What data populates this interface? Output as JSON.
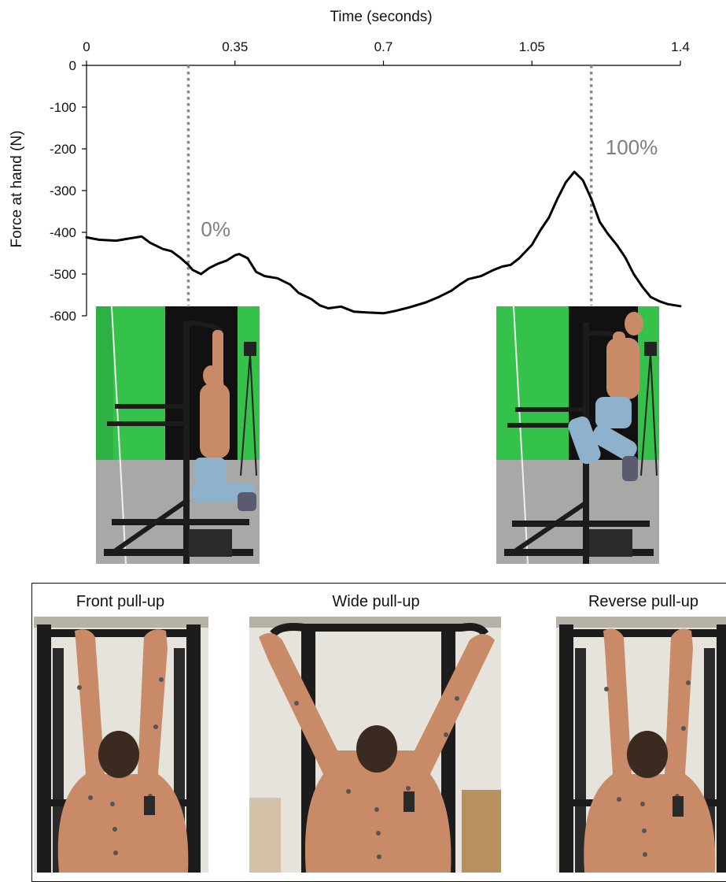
{
  "chart_data": {
    "type": "line",
    "xlabel": "Time (seconds)",
    "ylabel": "Force at hand (N)",
    "xlim": [
      0,
      1.4
    ],
    "ylim": [
      -600,
      0
    ],
    "x_ticks": [
      0,
      0.35,
      0.7,
      1.05,
      1.4
    ],
    "x_tick_labels": [
      "0",
      "0.35",
      "0.7",
      "1.05",
      "1.4"
    ],
    "y_ticks": [
      0,
      -100,
      -200,
      -300,
      -400,
      -500,
      -600
    ],
    "y_tick_labels": [
      "0",
      "-100",
      "-200",
      "-300",
      "-400",
      "-500",
      "-600"
    ],
    "x_axis_position": "top",
    "grid": false,
    "series": [
      {
        "x": [
          0,
          0.03,
          0.07,
          0.1,
          0.13,
          0.15,
          0.18,
          0.2,
          0.22,
          0.24,
          0.25,
          0.27,
          0.29,
          0.31,
          0.33,
          0.35,
          0.36,
          0.38,
          0.4,
          0.42,
          0.45,
          0.48,
          0.5,
          0.53,
          0.55,
          0.57,
          0.6,
          0.63,
          0.66,
          0.7,
          0.73,
          0.76,
          0.8,
          0.83,
          0.86,
          0.88,
          0.9,
          0.93,
          0.96,
          0.98,
          1.0,
          1.02,
          1.05,
          1.07,
          1.09,
          1.11,
          1.13,
          1.15,
          1.17,
          1.19,
          1.21,
          1.23,
          1.25,
          1.27,
          1.29,
          1.31,
          1.33,
          1.35,
          1.37,
          1.4
        ],
        "y": [
          -412,
          -418,
          -420,
          -415,
          -410,
          -425,
          -440,
          -445,
          -460,
          -478,
          -490,
          -500,
          -485,
          -475,
          -468,
          -455,
          -452,
          -462,
          -495,
          -505,
          -510,
          -525,
          -545,
          -560,
          -575,
          -582,
          -578,
          -590,
          -592,
          -594,
          -588,
          -580,
          -568,
          -555,
          -540,
          -525,
          -512,
          -505,
          -490,
          -482,
          -478,
          -462,
          -430,
          -395,
          -365,
          -320,
          -280,
          -255,
          -275,
          -320,
          -375,
          -405,
          -430,
          -460,
          -500,
          -530,
          -555,
          -565,
          -572,
          -577
        ]
      }
    ],
    "annotations": [
      {
        "x": 0.24,
        "label": "0%",
        "style": "dotted-vertical"
      },
      {
        "x": 1.19,
        "label": "100%",
        "style": "dotted-vertical"
      }
    ]
  },
  "panel": {
    "labels": [
      "Front pull-up",
      "Wide pull-up",
      "Reverse pull-up"
    ]
  },
  "colors": {
    "line": "#000000",
    "marker": "#8a8a8a",
    "marker_text": "#7f7f7f",
    "green_screen": "#34c24a",
    "wall": "#e6e3dc",
    "skin": "#c98a67",
    "bar": "#1c1c1c",
    "jeans": "#8fb2cc"
  }
}
